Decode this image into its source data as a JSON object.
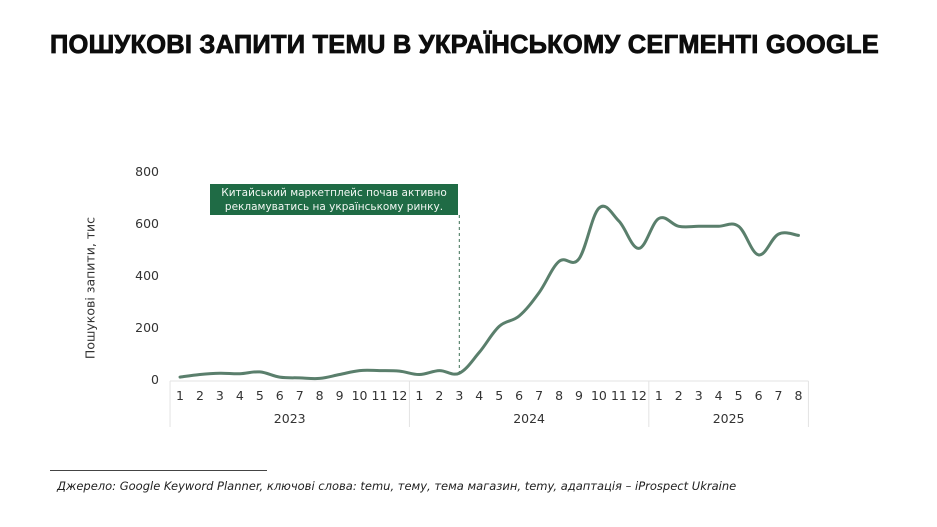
{
  "title": "ПОШУКОВІ ЗАПИТИ TEMU В УКРАЇНСЬКОМУ СЕГМЕНТІ GOOGLE",
  "annotation": {
    "line1": "Китайський маркетплейс почав активно",
    "line2": "рекламуватись на українському ринку.",
    "at_index": 14,
    "bg_color": "#1f6b45"
  },
  "source": "Джерело: Google Keyword Planner, ключові слова: temu, тему, тема магазин, temy, адаптація –  iProspect Ukraine",
  "colors": {
    "line": "#5a7f6c",
    "annotation_bg": "#1f6b45",
    "axis_grid": "#e3e3e3"
  },
  "chart_data": {
    "type": "line",
    "title": "ПОШУКОВІ ЗАПИТИ TEMU В УКРАЇНСЬКОМУ СЕГМЕНТІ GOOGLE",
    "xlabel": "",
    "ylabel": "Пошукові запити, тис",
    "ylim": [
      0,
      800
    ],
    "yticks": [
      "0",
      "200",
      "400",
      "600",
      "800"
    ],
    "grid": false,
    "legend": "none",
    "groups": [
      {
        "year": "2023",
        "months": [
          "1",
          "2",
          "3",
          "4",
          "5",
          "6",
          "7",
          "8",
          "9",
          "10",
          "11",
          "12"
        ]
      },
      {
        "year": "2024",
        "months": [
          "1",
          "2",
          "3",
          "4",
          "5",
          "6",
          "7",
          "8",
          "9",
          "10",
          "11",
          "12"
        ]
      },
      {
        "year": "2025",
        "months": [
          "1",
          "2",
          "3",
          "4",
          "5",
          "6",
          "7",
          "8"
        ]
      }
    ],
    "categories": [
      "2023-1",
      "2023-2",
      "2023-3",
      "2023-4",
      "2023-5",
      "2023-6",
      "2023-7",
      "2023-8",
      "2023-9",
      "2023-10",
      "2023-11",
      "2023-12",
      "2024-1",
      "2024-2",
      "2024-3",
      "2024-4",
      "2024-5",
      "2024-6",
      "2024-7",
      "2024-8",
      "2024-9",
      "2024-10",
      "2024-11",
      "2024-12",
      "2025-1",
      "2025-2",
      "2025-3",
      "2025-4",
      "2025-5",
      "2025-6",
      "2025-7",
      "2025-8"
    ],
    "series": [
      {
        "name": "Пошукові запити, тис",
        "values": [
          15,
          25,
          30,
          28,
          35,
          15,
          12,
          10,
          25,
          40,
          40,
          38,
          25,
          40,
          30,
          110,
          210,
          250,
          340,
          460,
          470,
          665,
          615,
          510,
          625,
          595,
          595,
          595,
          595,
          485,
          565,
          560
        ]
      }
    ],
    "annotations": [
      {
        "x": "2024-3",
        "text": "Китайський маркетплейс почав активно рекламуватись на українському ринку.",
        "style": "dashed vertical line with green label box"
      }
    ]
  }
}
